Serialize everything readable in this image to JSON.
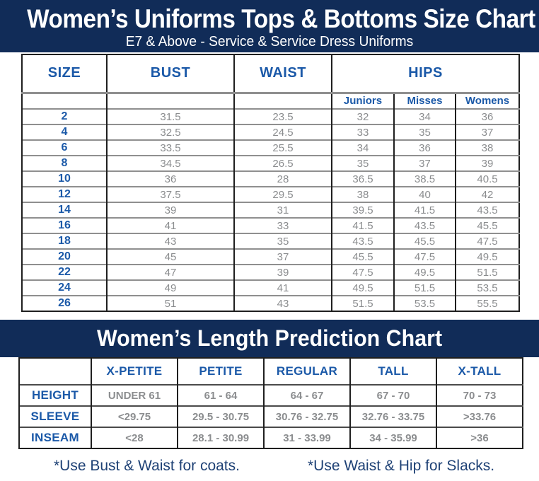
{
  "header": {
    "title": "Women’s Uniforms Tops & Bottoms Size Chart",
    "subtitle": "E7 & Above - Service & Service Dress Uniforms"
  },
  "size_chart": {
    "columns": [
      "SIZE",
      "BUST",
      "WAIST"
    ],
    "hips_label": "HIPS",
    "hips_subcolumns": [
      "Juniors",
      "Misses",
      "Womens"
    ],
    "rows": [
      [
        "2",
        "31.5",
        "23.5",
        "32",
        "34",
        "36"
      ],
      [
        "4",
        "32.5",
        "24.5",
        "33",
        "35",
        "37"
      ],
      [
        "6",
        "33.5",
        "25.5",
        "34",
        "36",
        "38"
      ],
      [
        "8",
        "34.5",
        "26.5",
        "35",
        "37",
        "39"
      ],
      [
        "10",
        "36",
        "28",
        "36.5",
        "38.5",
        "40.5"
      ],
      [
        "12",
        "37.5",
        "29.5",
        "38",
        "40",
        "42"
      ],
      [
        "14",
        "39",
        "31",
        "39.5",
        "41.5",
        "43.5"
      ],
      [
        "16",
        "41",
        "33",
        "41.5",
        "43.5",
        "45.5"
      ],
      [
        "18",
        "43",
        "35",
        "43.5",
        "45.5",
        "47.5"
      ],
      [
        "20",
        "45",
        "37",
        "45.5",
        "47.5",
        "49.5"
      ],
      [
        "22",
        "47",
        "39",
        "47.5",
        "49.5",
        "51.5"
      ],
      [
        "24",
        "49",
        "41",
        "49.5",
        "51.5",
        "53.5"
      ],
      [
        "26",
        "51",
        "43",
        "51.5",
        "53.5",
        "55.5"
      ]
    ]
  },
  "length_chart": {
    "title": "Women’s Length Prediction Chart",
    "columns": [
      "X-PETITE",
      "PETITE",
      "REGULAR",
      "TALL",
      "X-TALL"
    ],
    "rows": [
      {
        "label": "HEIGHT",
        "values": [
          "UNDER 61",
          "61 - 64",
          "64 - 67",
          "67 - 70",
          "70 - 73"
        ]
      },
      {
        "label": "SLEEVE",
        "values": [
          "<29.75",
          "29.5 - 30.75",
          "30.76 - 32.75",
          "32.76 - 33.75",
          ">33.76"
        ]
      },
      {
        "label": "INSEAM",
        "values": [
          "<28",
          "28.1 - 30.99",
          "31 - 33.99",
          "34 - 35.99",
          ">36"
        ]
      }
    ]
  },
  "footnotes": [
    "*Use Bust & Waist for coats.",
    "*Use Waist & Hip for Slacks."
  ],
  "colors": {
    "navy": "#112c58",
    "heading_blue": "#1b59a8",
    "value_gray": "#8b8d8f",
    "footnote_navy": "#1e4175"
  }
}
